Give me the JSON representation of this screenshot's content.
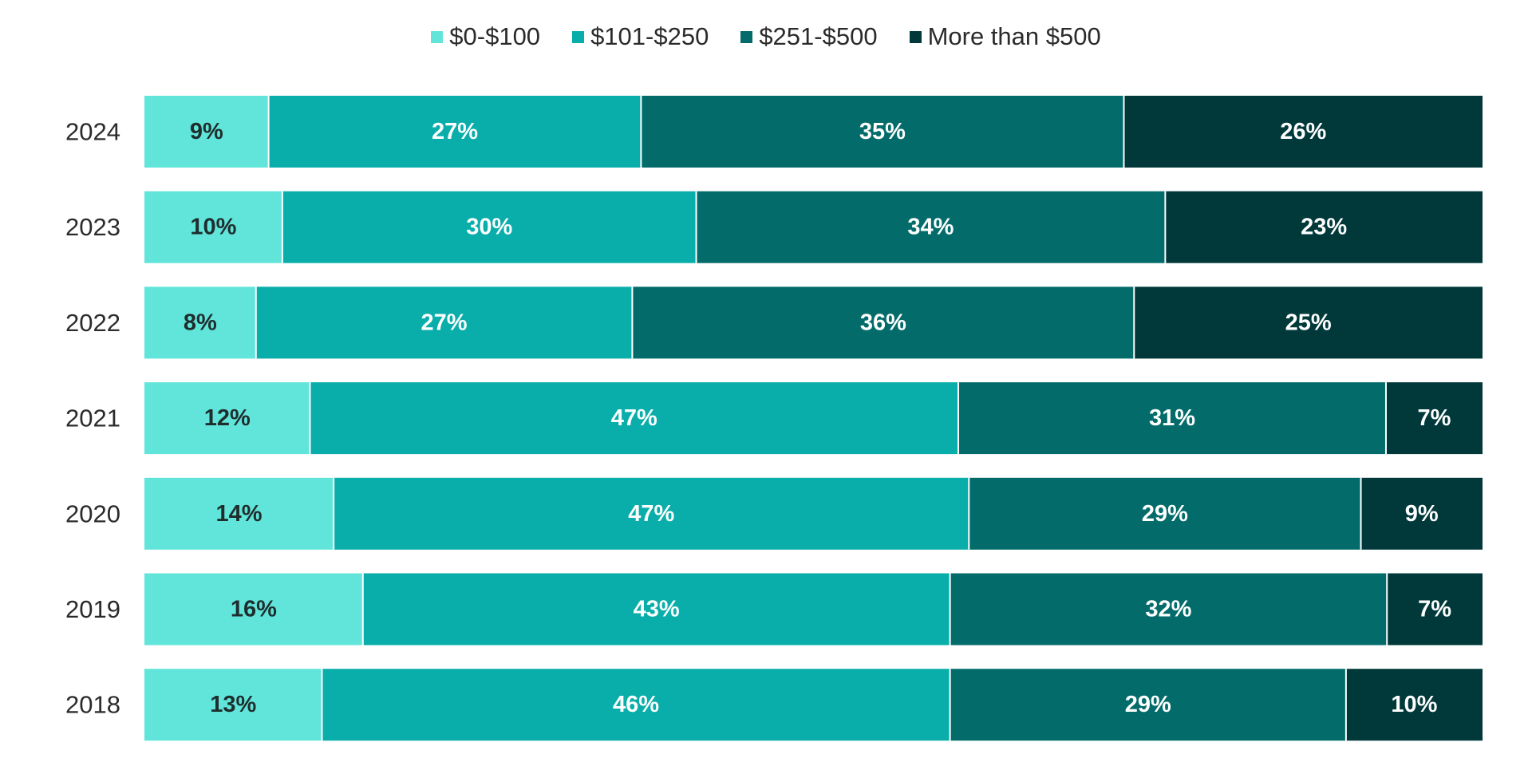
{
  "chart_data": {
    "type": "bar",
    "orientation": "horizontal",
    "stacked": true,
    "categories": [
      "2024",
      "2023",
      "2022",
      "2021",
      "2020",
      "2019",
      "2018"
    ],
    "series": [
      {
        "name": "$0-$100",
        "color": "#61e5da",
        "label_color": "#1f2d2d",
        "values": [
          9,
          10,
          8,
          12,
          14,
          16,
          13
        ]
      },
      {
        "name": "$101-$250",
        "color": "#09aeab",
        "label_color": "#ffffff",
        "values": [
          27,
          30,
          27,
          47,
          47,
          43,
          46
        ]
      },
      {
        "name": "$251-$500",
        "color": "#036c6b",
        "label_color": "#ffffff",
        "values": [
          35,
          34,
          36,
          31,
          29,
          32,
          29
        ]
      },
      {
        "name": "More than $500",
        "color": "#01393a",
        "label_color": "#ffffff",
        "values": [
          26,
          23,
          25,
          7,
          9,
          7,
          10
        ]
      }
    ],
    "value_suffix": "%",
    "legend_position": "top-center",
    "grid": false
  }
}
